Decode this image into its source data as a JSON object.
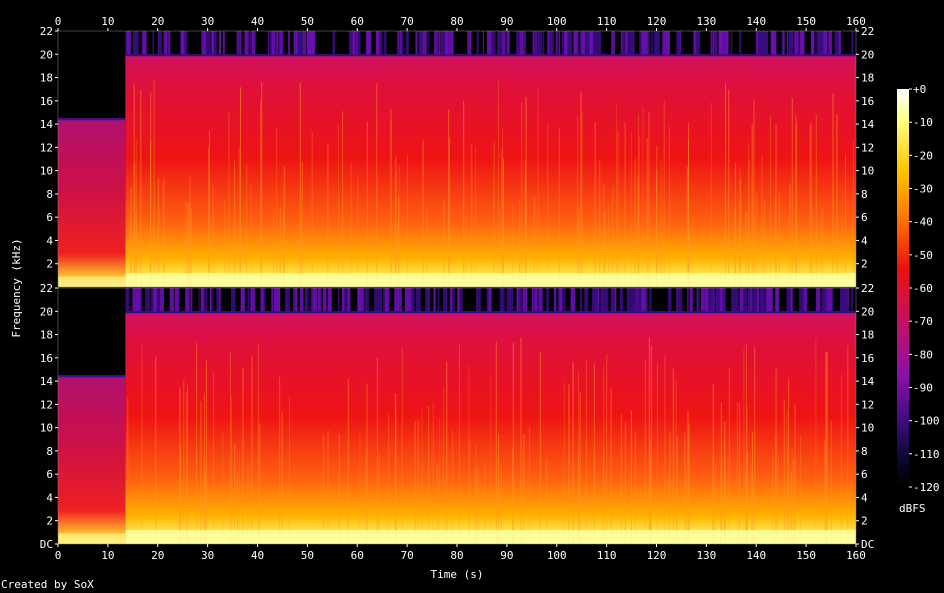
{
  "chart_data": {
    "type": "heatmap",
    "title": "",
    "xlabel": "Time (s)",
    "ylabel": "Frequency (kHz)",
    "xlim": [
      0,
      160
    ],
    "ylim": [
      0,
      22
    ],
    "x_ticks": [
      "0",
      "10",
      "20",
      "30",
      "40",
      "50",
      "60",
      "70",
      "80",
      "90",
      "100",
      "110",
      "120",
      "130",
      "140",
      "150",
      "160"
    ],
    "y_ticks": [
      "DC",
      "2",
      "4",
      "6",
      "8",
      "10",
      "12",
      "14",
      "16",
      "18",
      "20",
      "22"
    ],
    "channels": [
      {
        "name": "",
        "cutoff_before_13_5s_khz": 14.5,
        "cutoff_after_13_5s_khz": 20
      },
      {
        "name": "",
        "cutoff_before_13_5s_khz": 14.5,
        "cutoff_after_13_5s_khz": 20
      }
    ],
    "transition_time_s": 13.5,
    "colorbar": {
      "label": "dBFS",
      "range": [
        -120,
        0
      ],
      "ticks": [
        "+0",
        "-10",
        "-20",
        "-30",
        "-40",
        "-50",
        "-60",
        "-70",
        "-80",
        "-90",
        "-100",
        "-110",
        "-120"
      ]
    }
  },
  "footer": "Created by SoX"
}
